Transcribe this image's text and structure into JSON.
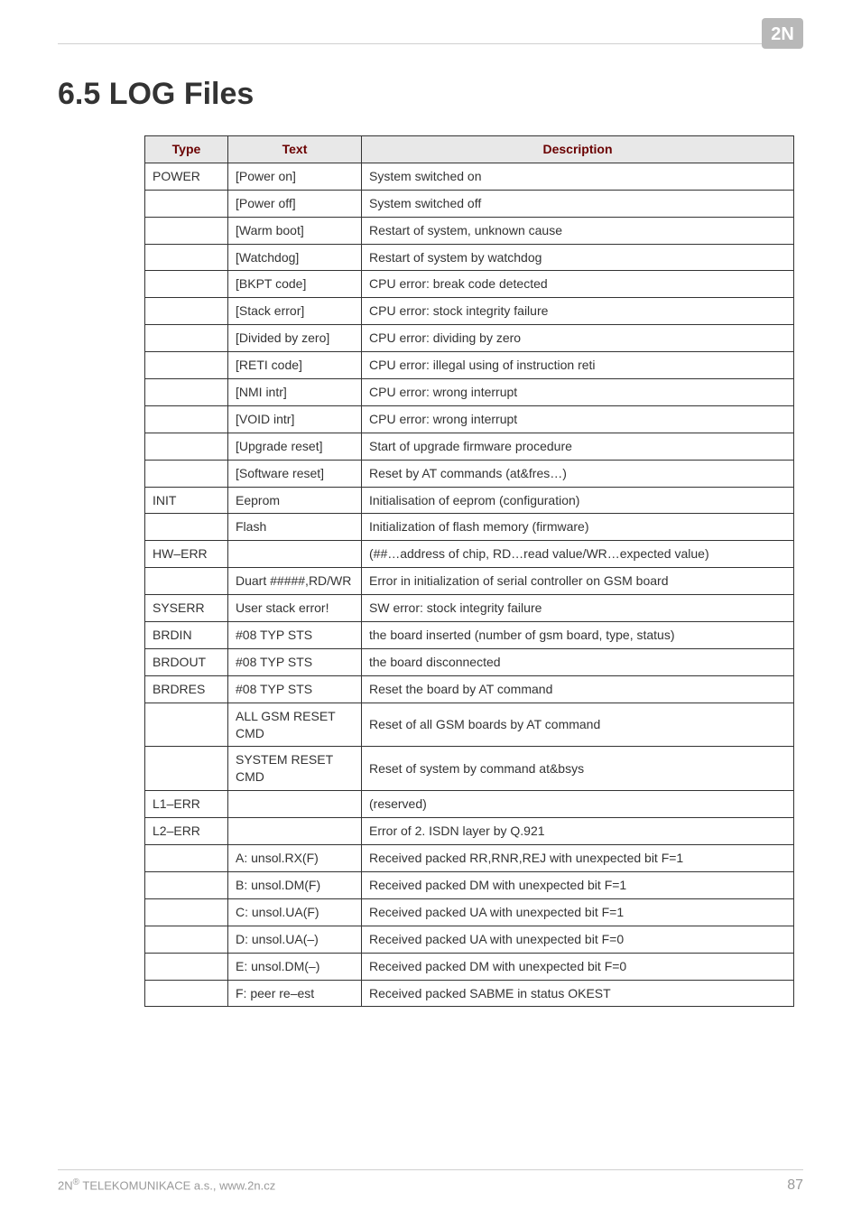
{
  "logo": {
    "text": "2N",
    "bg": "#b8b8b8",
    "fg": "#ffffff"
  },
  "title": "6.5 LOG Files",
  "table": {
    "header_bg": "#e8e8e8",
    "header_color": "#6a0000",
    "border_color": "#333333",
    "columns": [
      "Type",
      "Text",
      "Description"
    ],
    "rows": [
      [
        "POWER",
        "[Power on]",
        "System switched on"
      ],
      [
        "",
        "[Power off]",
        "System switched off"
      ],
      [
        "",
        "[Warm boot]",
        "Restart of system, unknown cause"
      ],
      [
        "",
        "[Watchdog]",
        "Restart of system by watchdog"
      ],
      [
        "",
        "[BKPT code]",
        "CPU error: break code detected"
      ],
      [
        "",
        "[Stack error]",
        "CPU error: stock integrity failure"
      ],
      [
        "",
        "[Divided by zero]",
        "CPU error: dividing by zero"
      ],
      [
        "",
        "[RETI code]",
        "CPU error: illegal using of instruction reti"
      ],
      [
        "",
        "[NMI intr]",
        "CPU error: wrong interrupt"
      ],
      [
        "",
        "[VOID intr]",
        "CPU error: wrong interrupt"
      ],
      [
        "",
        "[Upgrade reset]",
        "Start of upgrade firmware procedure"
      ],
      [
        "",
        "[Software reset]",
        "Reset by AT commands (at&fres…)"
      ],
      [
        "INIT",
        "Eeprom",
        "Initialisation of eeprom (configuration)"
      ],
      [
        "",
        "Flash",
        "Initialization of flash memory (firmware)"
      ],
      [
        "HW–ERR",
        "",
        "(##…address of chip, RD…read value/WR…expected value)"
      ],
      [
        "",
        "Duart #####,RD/WR",
        "Error in initialization of serial controller on GSM board"
      ],
      [
        "SYSERR",
        "User stack error!",
        "SW error: stock integrity failure"
      ],
      [
        "BRDIN",
        "#08 TYP STS",
        "the board inserted (number of gsm board, type, status)"
      ],
      [
        "BRDOUT",
        "#08 TYP STS",
        "the board disconnected"
      ],
      [
        "BRDRES",
        "#08 TYP STS",
        "Reset the board by AT command"
      ],
      [
        "",
        "ALL GSM RESET CMD",
        "Reset of all GSM boards by AT command"
      ],
      [
        "",
        "SYSTEM RESET CMD",
        "Reset of system by command at&bsys"
      ],
      [
        "L1–ERR",
        "",
        "(reserved)"
      ],
      [
        "L2–ERR",
        "",
        "Error of 2. ISDN layer by Q.921"
      ],
      [
        "",
        "A: unsol.RX(F)",
        "Received packed RR,RNR,REJ with unexpected bit F=1"
      ],
      [
        "",
        "B: unsol.DM(F)",
        "Received packed DM with unexpected bit F=1"
      ],
      [
        "",
        "C: unsol.UA(F)",
        "Received packed UA with unexpected bit F=1"
      ],
      [
        "",
        "D: unsol.UA(–)",
        "Received packed UA with unexpected bit F=0"
      ],
      [
        "",
        "E: unsol.DM(–)",
        "Received packed DM with unexpected bit F=0"
      ],
      [
        "",
        "F: peer re–est",
        "Received packed SABME in status OKEST"
      ]
    ]
  },
  "footer": {
    "left_prefix": "2N",
    "left_sup": "®",
    "left_rest": " TELEKOMUNIKACE a.s., www.2n.cz",
    "page": "87"
  }
}
